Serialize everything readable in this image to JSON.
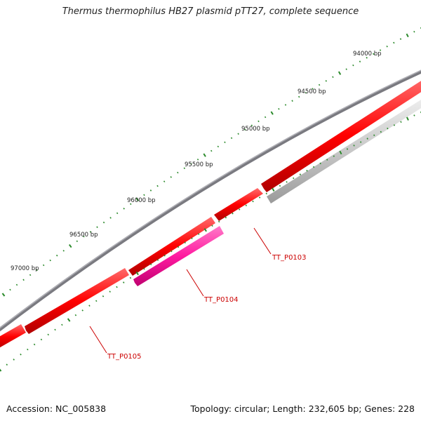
{
  "title": "Thermus thermophilus HB27 plasmid pTT27, complete sequence",
  "footer": {
    "accession": "Accession: NC_005838",
    "topology": "Topology: circular; Length: 232,605 bp; Genes: 228"
  },
  "ruler": {
    "labels": [
      "94000 bp",
      "94500 bp",
      "95000 bp",
      "95500 bp",
      "96000 bp",
      "96500 bp",
      "97000 bp"
    ],
    "tick_color": "#2b8a2b"
  },
  "genes": [
    {
      "label": "TT_P0103",
      "color": "#ff0000"
    },
    {
      "label": "TT_P0104",
      "color": "#ff1aa0"
    },
    {
      "label": "TT_P0105",
      "color": "#ff0000"
    }
  ],
  "colors": {
    "backbone": "#7a7a80",
    "forward_gene": "#ff0000",
    "reverse_gene_grey": "#c8c8c8",
    "highlight_gene": "#ff1aa0",
    "label": "#cc0000"
  }
}
